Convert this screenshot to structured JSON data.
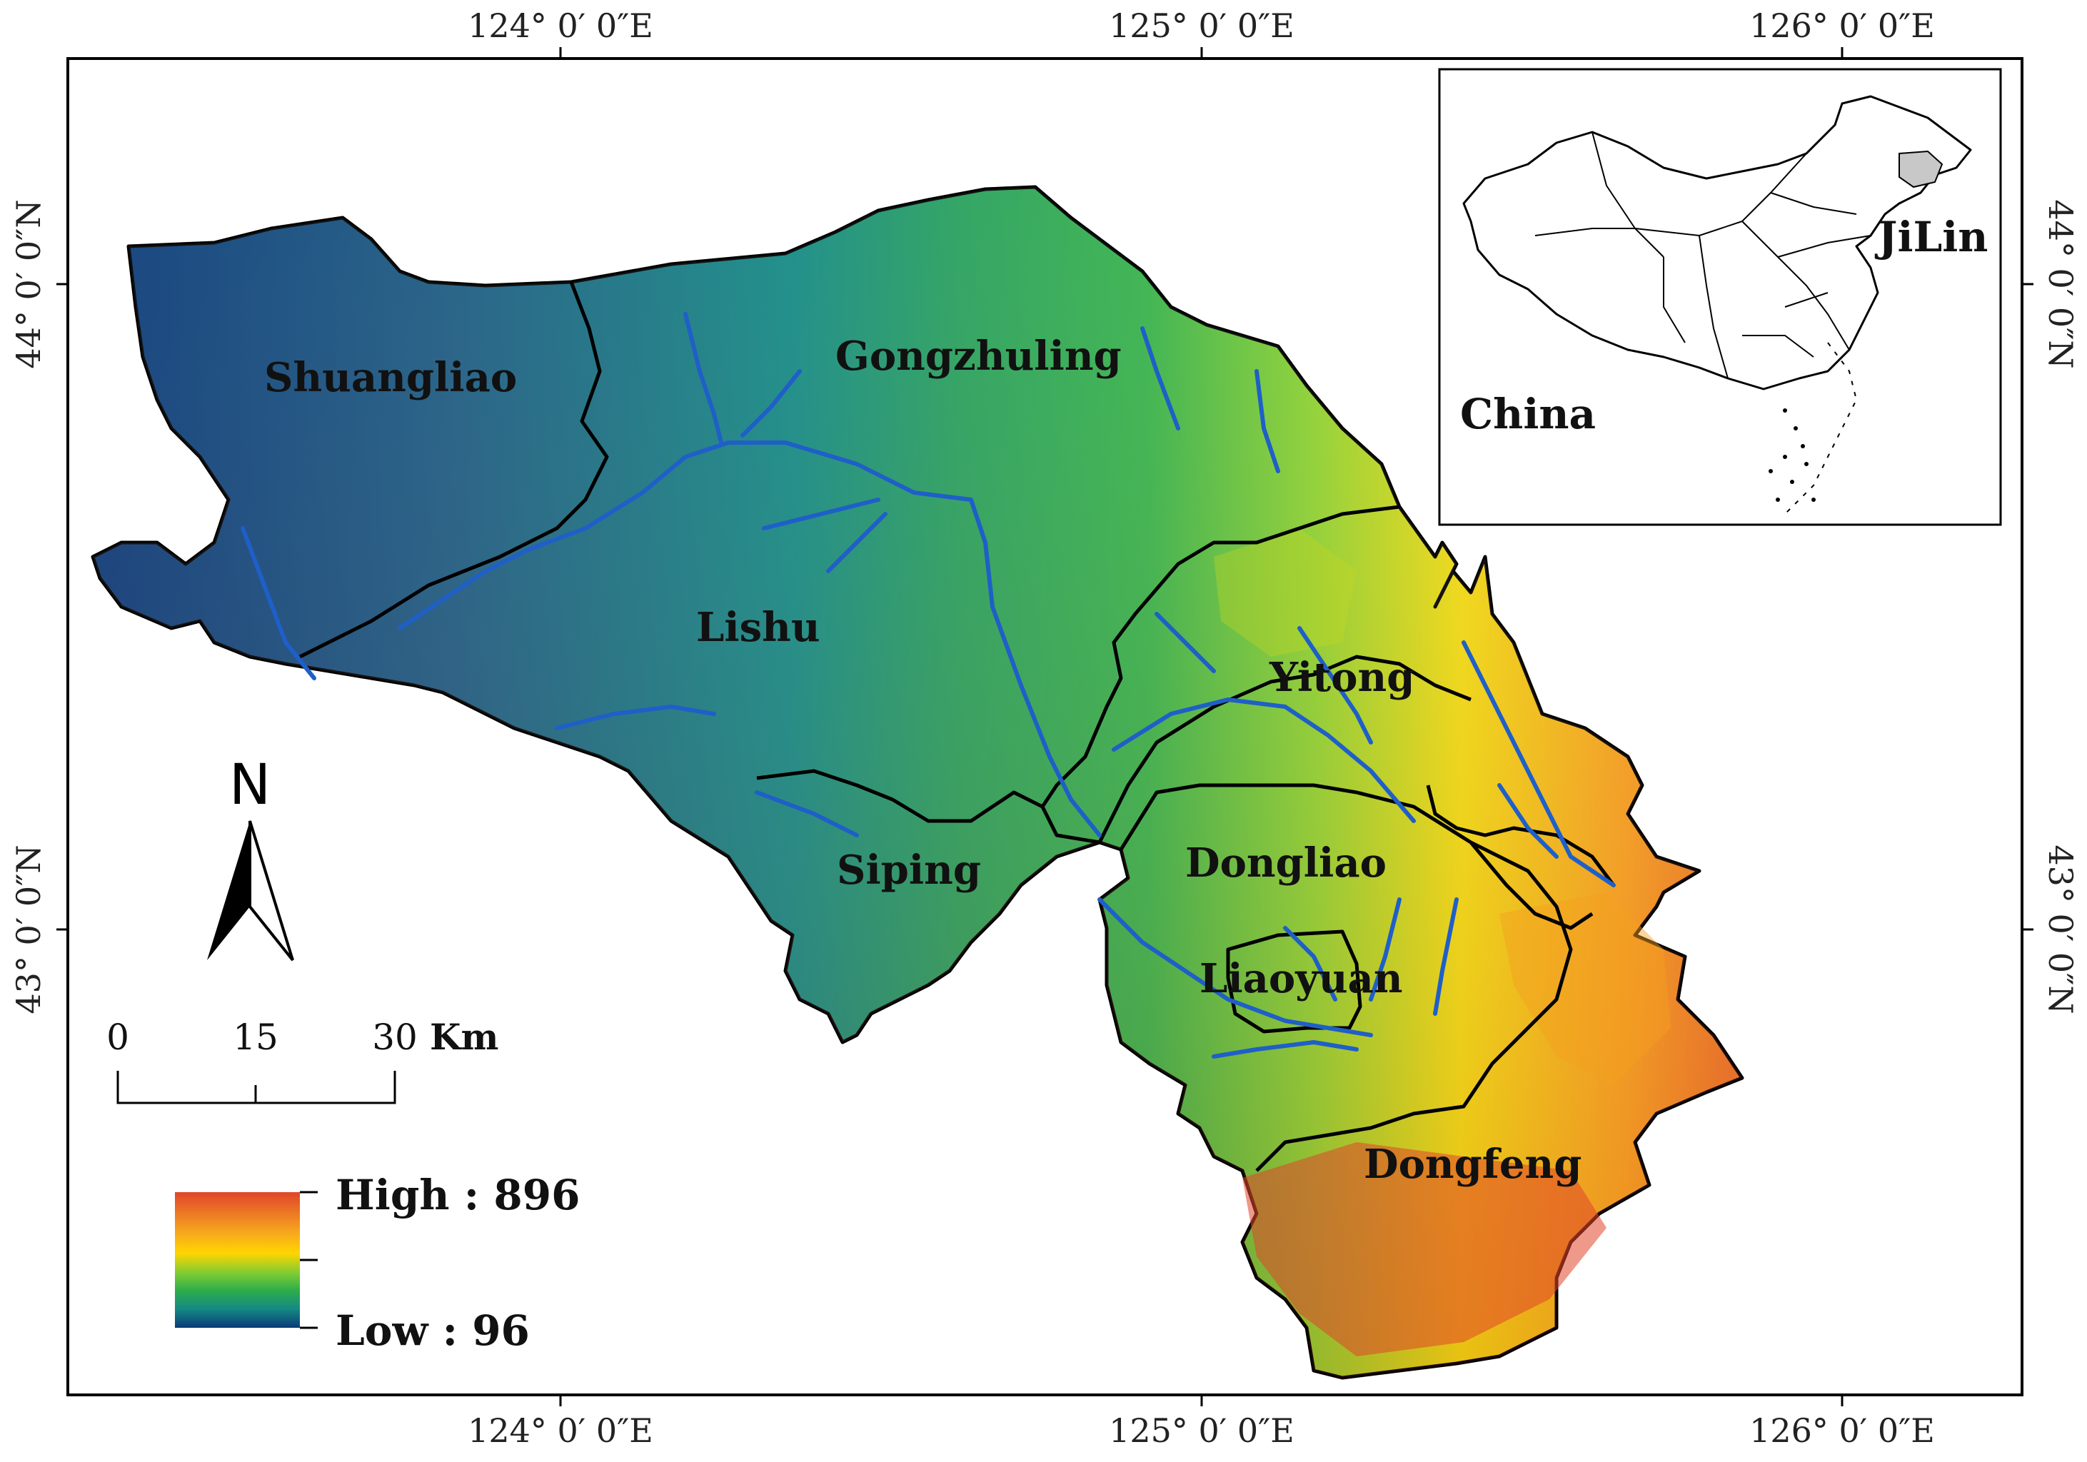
{
  "map": {
    "top_ticks": [
      "124°  0′ 0″E",
      "125°  0′ 0″E",
      "126°  0′ 0″E"
    ],
    "bottom_ticks": [
      "124°  0′ 0″E",
      "125°  0′ 0″E",
      "126°  0′ 0″E"
    ],
    "left_ticks": [
      "44°  0′ 0″N",
      "43°  0′ 0″N"
    ],
    "right_ticks": [
      "44°  0′ 0″N",
      "43°  0′ 0″N"
    ],
    "regions": {
      "shuangliao": "Shuangliao",
      "gongzhuling": "Gongzhuling",
      "lishu": "Lishu",
      "yitong": "Yitong",
      "siping": "Siping",
      "dongliao": "Dongliao",
      "liaoyuan": "Liaoyuan",
      "dongfeng": "Dongfeng"
    },
    "north_arrow": "N",
    "scale_bar": {
      "labels": [
        "0",
        "15",
        "30"
      ],
      "unit": "Km"
    },
    "legend": {
      "high": "High : 896",
      "low": "Low : 96",
      "colors": [
        "#e0452a",
        "#ffd500",
        "#36b24a",
        "#148a84",
        "#0a3a78"
      ]
    },
    "inset": {
      "country": "China",
      "province": "JiLin",
      "highlight_color": "#c8c8c8"
    },
    "colors": {
      "river": "#1f5fc8",
      "boundary": "#000000"
    }
  }
}
